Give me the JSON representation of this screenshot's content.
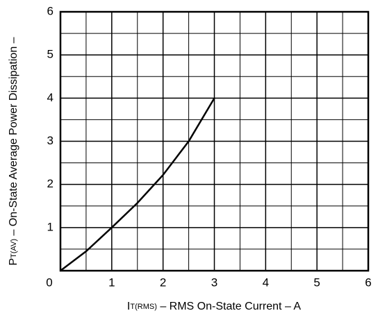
{
  "chart_data": {
    "type": "line",
    "x_label": {
      "main": "I",
      "sub": "T(RMS)",
      "rest": " – RMS On-State Current – A"
    },
    "y_label": {
      "main": "P",
      "sub": "T(AV)",
      "rest": " – On-State Average Power Dissipation –"
    },
    "x": [
      0,
      0.5,
      1,
      1.5,
      2,
      2.5,
      3
    ],
    "series": [
      {
        "color": "#000000",
        "values": [
          0,
          0.45,
          1,
          1.57,
          2.22,
          3.0,
          4.0
        ]
      }
    ],
    "xlim": [
      0,
      6
    ],
    "ylim": [
      0,
      6
    ],
    "xticks": [
      0,
      1,
      2,
      3,
      4,
      5,
      6
    ],
    "yticks": [
      1,
      2,
      3,
      4,
      5,
      6
    ],
    "xminor": [
      0.5,
      1.5,
      2.5,
      3.5,
      4.5,
      5.5
    ],
    "yminor": [
      0.5,
      1.5,
      2.5,
      3.5,
      4.5,
      5.5
    ],
    "grid": true
  }
}
